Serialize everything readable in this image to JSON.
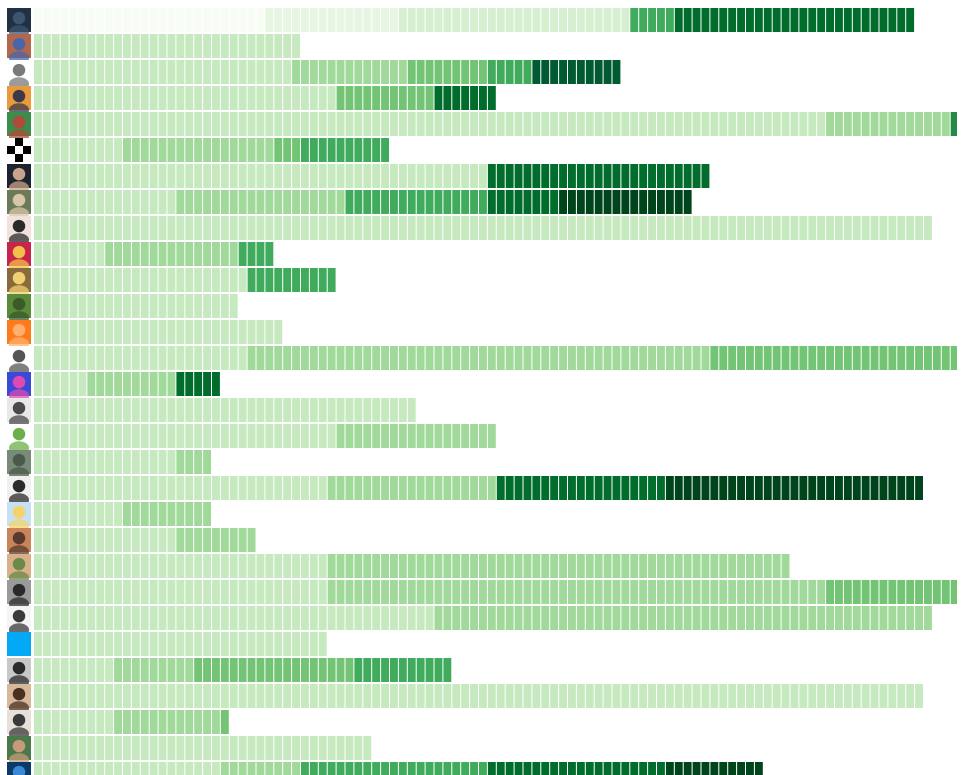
{
  "chart_data": {
    "type": "heatmap",
    "title": "",
    "xlabel": "",
    "ylabel": "",
    "rows": [
      {
        "avatar": {
          "icon": "avatar-dark-screenshot-icon",
          "colors": [
            "#223044",
            "#3c5670"
          ]
        },
        "segments": [
          [
            26,
            "#f7fcf5"
          ],
          [
            15,
            "#e7f6e3"
          ],
          [
            26,
            "#d6efd0"
          ],
          [
            5,
            "#41ab5d"
          ],
          [
            27,
            "#006d2c"
          ]
        ]
      },
      {
        "avatar": {
          "icon": "avatar-cartoon-face-icon",
          "colors": [
            "#b0674b",
            "#4a66a8"
          ]
        },
        "segments": [
          [
            30,
            "#c7e9c0"
          ]
        ]
      },
      {
        "avatar": {
          "icon": "avatar-wizard-hat-icon",
          "colors": [
            "#ffffff",
            "#7a7a7a"
          ]
        },
        "segments": [
          [
            29,
            "#c7e9c0"
          ],
          [
            13,
            "#a1d99b"
          ],
          [
            9,
            "#74c476"
          ],
          [
            5,
            "#41ab5d"
          ],
          [
            10,
            "#005a32"
          ]
        ]
      },
      {
        "avatar": {
          "icon": "avatar-sunset-landscape-icon",
          "colors": [
            "#e89a3c",
            "#3a3a4a"
          ]
        },
        "segments": [
          [
            34,
            "#c7e9c0"
          ],
          [
            11,
            "#74c476"
          ],
          [
            7,
            "#006d2c"
          ]
        ]
      },
      {
        "avatar": {
          "icon": "avatar-green-portrait-icon",
          "colors": [
            "#3c8c4c",
            "#b04a3a"
          ]
        },
        "segments": [
          [
            89,
            "#c7e9c0"
          ],
          [
            14,
            "#a1d99b"
          ],
          [
            2,
            "#238b45"
          ]
        ]
      },
      {
        "avatar": {
          "icon": "avatar-checker-pattern-icon",
          "colors": [
            "#000000",
            "#ffffff"
          ]
        },
        "segments": [
          [
            10,
            "#c7e9c0"
          ],
          [
            17,
            "#a1d99b"
          ],
          [
            3,
            "#74c476"
          ],
          [
            10,
            "#41ab5d"
          ]
        ]
      },
      {
        "avatar": {
          "icon": "avatar-dark-suit-icon",
          "colors": [
            "#1e2330",
            "#c9a48a"
          ]
        },
        "segments": [
          [
            51,
            "#c7e9c0"
          ],
          [
            25,
            "#006d2c"
          ]
        ]
      },
      {
        "avatar": {
          "icon": "avatar-hat-outdoor-icon",
          "colors": [
            "#6c7a5a",
            "#d8c6a8"
          ]
        },
        "segments": [
          [
            16,
            "#c7e9c0"
          ],
          [
            19,
            "#a1d99b"
          ],
          [
            16,
            "#41ab5d"
          ],
          [
            8,
            "#006d2c"
          ],
          [
            15,
            "#00441b"
          ]
        ]
      },
      {
        "avatar": {
          "icon": "avatar-red-lips-icon",
          "colors": [
            "#f2e2dc",
            "#2a2a2a"
          ]
        },
        "segments": [
          [
            101,
            "#c7e9c0"
          ]
        ]
      },
      {
        "avatar": {
          "icon": "avatar-colorful-art-icon",
          "colors": [
            "#c8244c",
            "#f2c04a"
          ]
        },
        "segments": [
          [
            8,
            "#c7e9c0"
          ],
          [
            15,
            "#a1d99b"
          ],
          [
            4,
            "#41ab5d"
          ]
        ]
      },
      {
        "avatar": {
          "icon": "avatar-face-closeup-icon",
          "colors": [
            "#8a6a3a",
            "#f0d070"
          ]
        },
        "segments": [
          [
            24,
            "#c7e9c0"
          ],
          [
            10,
            "#41ab5d"
          ]
        ]
      },
      {
        "avatar": {
          "icon": "avatar-park-photo-icon",
          "colors": [
            "#5a8a3a",
            "#3a5a2a"
          ]
        },
        "segments": [
          [
            23,
            "#c7e9c0"
          ]
        ]
      },
      {
        "avatar": {
          "icon": "avatar-orange-robot-icon",
          "colors": [
            "#ff7a1a",
            "#ffb070"
          ]
        },
        "segments": [
          [
            28,
            "#c7e9c0"
          ]
        ]
      },
      {
        "avatar": {
          "icon": "avatar-troll-face-icon",
          "colors": [
            "#ffffff",
            "#555555"
          ]
        },
        "segments": [
          [
            24,
            "#c7e9c0"
          ],
          [
            52,
            "#a1d99b"
          ],
          [
            29,
            "#74c476"
          ]
        ]
      },
      {
        "avatar": {
          "icon": "avatar-galaxy-art-icon",
          "colors": [
            "#3a4ad8",
            "#e04ab0"
          ]
        },
        "segments": [
          [
            6,
            "#c7e9c0"
          ],
          [
            10,
            "#a1d99b"
          ],
          [
            5,
            "#006d2c"
          ]
        ]
      },
      {
        "avatar": {
          "icon": "avatar-person-standing-icon",
          "colors": [
            "#e8e8e8",
            "#4a4a4a"
          ]
        },
        "segments": [
          [
            43,
            "#c7e9c0"
          ]
        ]
      },
      {
        "avatar": {
          "icon": "avatar-vegan-logo-icon",
          "colors": [
            "#ffffff",
            "#6ab04a"
          ]
        },
        "segments": [
          [
            34,
            "#c7e9c0"
          ],
          [
            18,
            "#a1d99b"
          ]
        ]
      },
      {
        "avatar": {
          "icon": "avatar-street-photo-icon",
          "colors": [
            "#7a8a7a",
            "#4a5a4a"
          ]
        },
        "segments": [
          [
            16,
            "#c7e9c0"
          ],
          [
            4,
            "#a1d99b"
          ]
        ]
      },
      {
        "avatar": {
          "icon": "avatar-smiling-person-icon",
          "colors": [
            "#f0f0f0",
            "#2a2a2a"
          ]
        },
        "segments": [
          [
            33,
            "#c7e9c0"
          ],
          [
            19,
            "#a1d99b"
          ],
          [
            19,
            "#006d2c"
          ],
          [
            29,
            "#00441b"
          ]
        ]
      },
      {
        "avatar": {
          "icon": "avatar-light-sketch-icon",
          "colors": [
            "#c8e0f4",
            "#f4d46a"
          ]
        },
        "segments": [
          [
            10,
            "#c7e9c0"
          ],
          [
            10,
            "#a1d99b"
          ]
        ]
      },
      {
        "avatar": {
          "icon": "avatar-glasses-beard-icon",
          "colors": [
            "#c8845a",
            "#5a3a2a"
          ]
        },
        "segments": [
          [
            16,
            "#c7e9c0"
          ],
          [
            9,
            "#a1d99b"
          ]
        ]
      },
      {
        "avatar": {
          "icon": "avatar-bald-smile-icon",
          "colors": [
            "#d8b08a",
            "#6a8a4a"
          ]
        },
        "segments": [
          [
            33,
            "#c7e9c0"
          ],
          [
            52,
            "#a1d99b"
          ]
        ]
      },
      {
        "avatar": {
          "icon": "avatar-bw-portrait-icon",
          "colors": [
            "#9a9a9a",
            "#2a2a2a"
          ]
        },
        "segments": [
          [
            33,
            "#c7e9c0"
          ],
          [
            56,
            "#a1d99b"
          ],
          [
            16,
            "#74c476"
          ]
        ]
      },
      {
        "avatar": {
          "icon": "avatar-curly-hair-icon",
          "colors": [
            "#f4f4f4",
            "#3a3a3a"
          ]
        },
        "segments": [
          [
            45,
            "#c7e9c0"
          ],
          [
            56,
            "#a1d99b"
          ]
        ]
      },
      {
        "avatar": {
          "icon": "avatar-blue-square-icon",
          "colors": [
            "#03a9f4",
            "#03a9f4"
          ]
        },
        "segments": [
          [
            33,
            "#c7e9c0"
          ]
        ]
      },
      {
        "avatar": {
          "icon": "avatar-dark-hair-icon",
          "colors": [
            "#c8c8c8",
            "#2a2a2a"
          ]
        },
        "segments": [
          [
            9,
            "#c7e9c0"
          ],
          [
            9,
            "#a1d99b"
          ],
          [
            18,
            "#74c476"
          ],
          [
            11,
            "#41ab5d"
          ]
        ]
      },
      {
        "avatar": {
          "icon": "avatar-young-man-icon",
          "colors": [
            "#d8b89a",
            "#4a3020"
          ]
        },
        "segments": [
          [
            100,
            "#c7e9c0"
          ]
        ]
      },
      {
        "avatar": {
          "icon": "avatar-beard-glasses-icon",
          "colors": [
            "#e8e0d8",
            "#3a3a3a"
          ]
        },
        "segments": [
          [
            9,
            "#c7e9c0"
          ],
          [
            12,
            "#a1d99b"
          ],
          [
            1,
            "#74c476"
          ]
        ]
      },
      {
        "avatar": {
          "icon": "avatar-outdoor-man-icon",
          "colors": [
            "#4a7a4a",
            "#c89a7a"
          ]
        },
        "segments": [
          [
            38,
            "#c7e9c0"
          ]
        ]
      },
      {
        "avatar": {
          "icon": "avatar-blue-orb-icon",
          "colors": [
            "#0a3a6a",
            "#3a8ad8"
          ]
        },
        "segments": [
          [
            21,
            "#c7e9c0"
          ],
          [
            9,
            "#a1d99b"
          ],
          [
            21,
            "#41ab5d"
          ],
          [
            20,
            "#006d2c"
          ],
          [
            11,
            "#00441b"
          ]
        ]
      }
    ]
  }
}
